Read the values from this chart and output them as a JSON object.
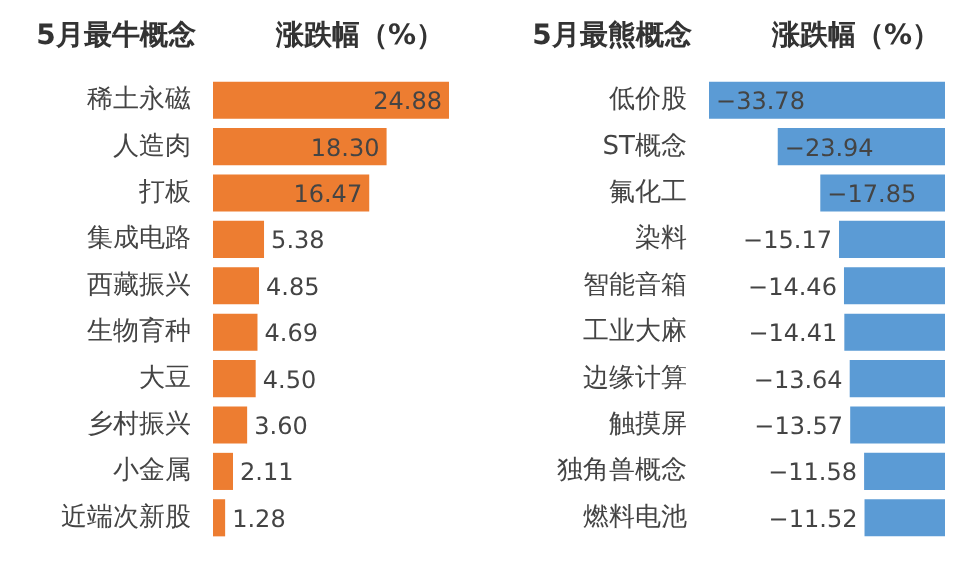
{
  "chart_data": [
    {
      "type": "bar",
      "orientation": "horizontal",
      "title": "5月最牛概念",
      "xlabel": "涨跌幅（%）",
      "categories": [
        "稀土永磁",
        "人造肉",
        "打板",
        "集成电路",
        "西藏振兴",
        "生物育种",
        "大豆",
        "乡村振兴",
        "小金属",
        "近端次新股"
      ],
      "values": [
        24.88,
        18.3,
        16.47,
        5.38,
        4.85,
        4.69,
        4.5,
        3.6,
        2.11,
        1.28
      ],
      "color": "#ed7d31",
      "xlim": [
        0,
        24.88
      ],
      "value_labels": [
        "24.88",
        "18.30",
        "16.47",
        "5.38",
        "4.85",
        "4.69",
        "4.50",
        "3.60",
        "2.11",
        "1.28"
      ],
      "tick_labels": "y",
      "grid": false
    },
    {
      "type": "bar",
      "orientation": "horizontal",
      "title": "5月最熊概念",
      "xlabel": "涨跌幅（%）",
      "categories": [
        "低价股",
        "ST概念",
        "氟化工",
        "染料",
        "智能音箱",
        "工业大麻",
        "边缘计算",
        "触摸屏",
        "独角兽概念",
        "燃料电池"
      ],
      "values": [
        -33.78,
        -23.94,
        -17.85,
        -15.17,
        -14.46,
        -14.41,
        -13.64,
        -13.57,
        -11.58,
        -11.52
      ],
      "color": "#5b9bd5",
      "xlim": [
        -33.78,
        0
      ],
      "value_labels": [
        "−33.78",
        "−23.94",
        "−17.85",
        "−15.17",
        "−14.46",
        "−14.41",
        "−13.64",
        "−13.57",
        "−11.58",
        "−11.52"
      ],
      "tick_labels": "y",
      "grid": false
    }
  ]
}
